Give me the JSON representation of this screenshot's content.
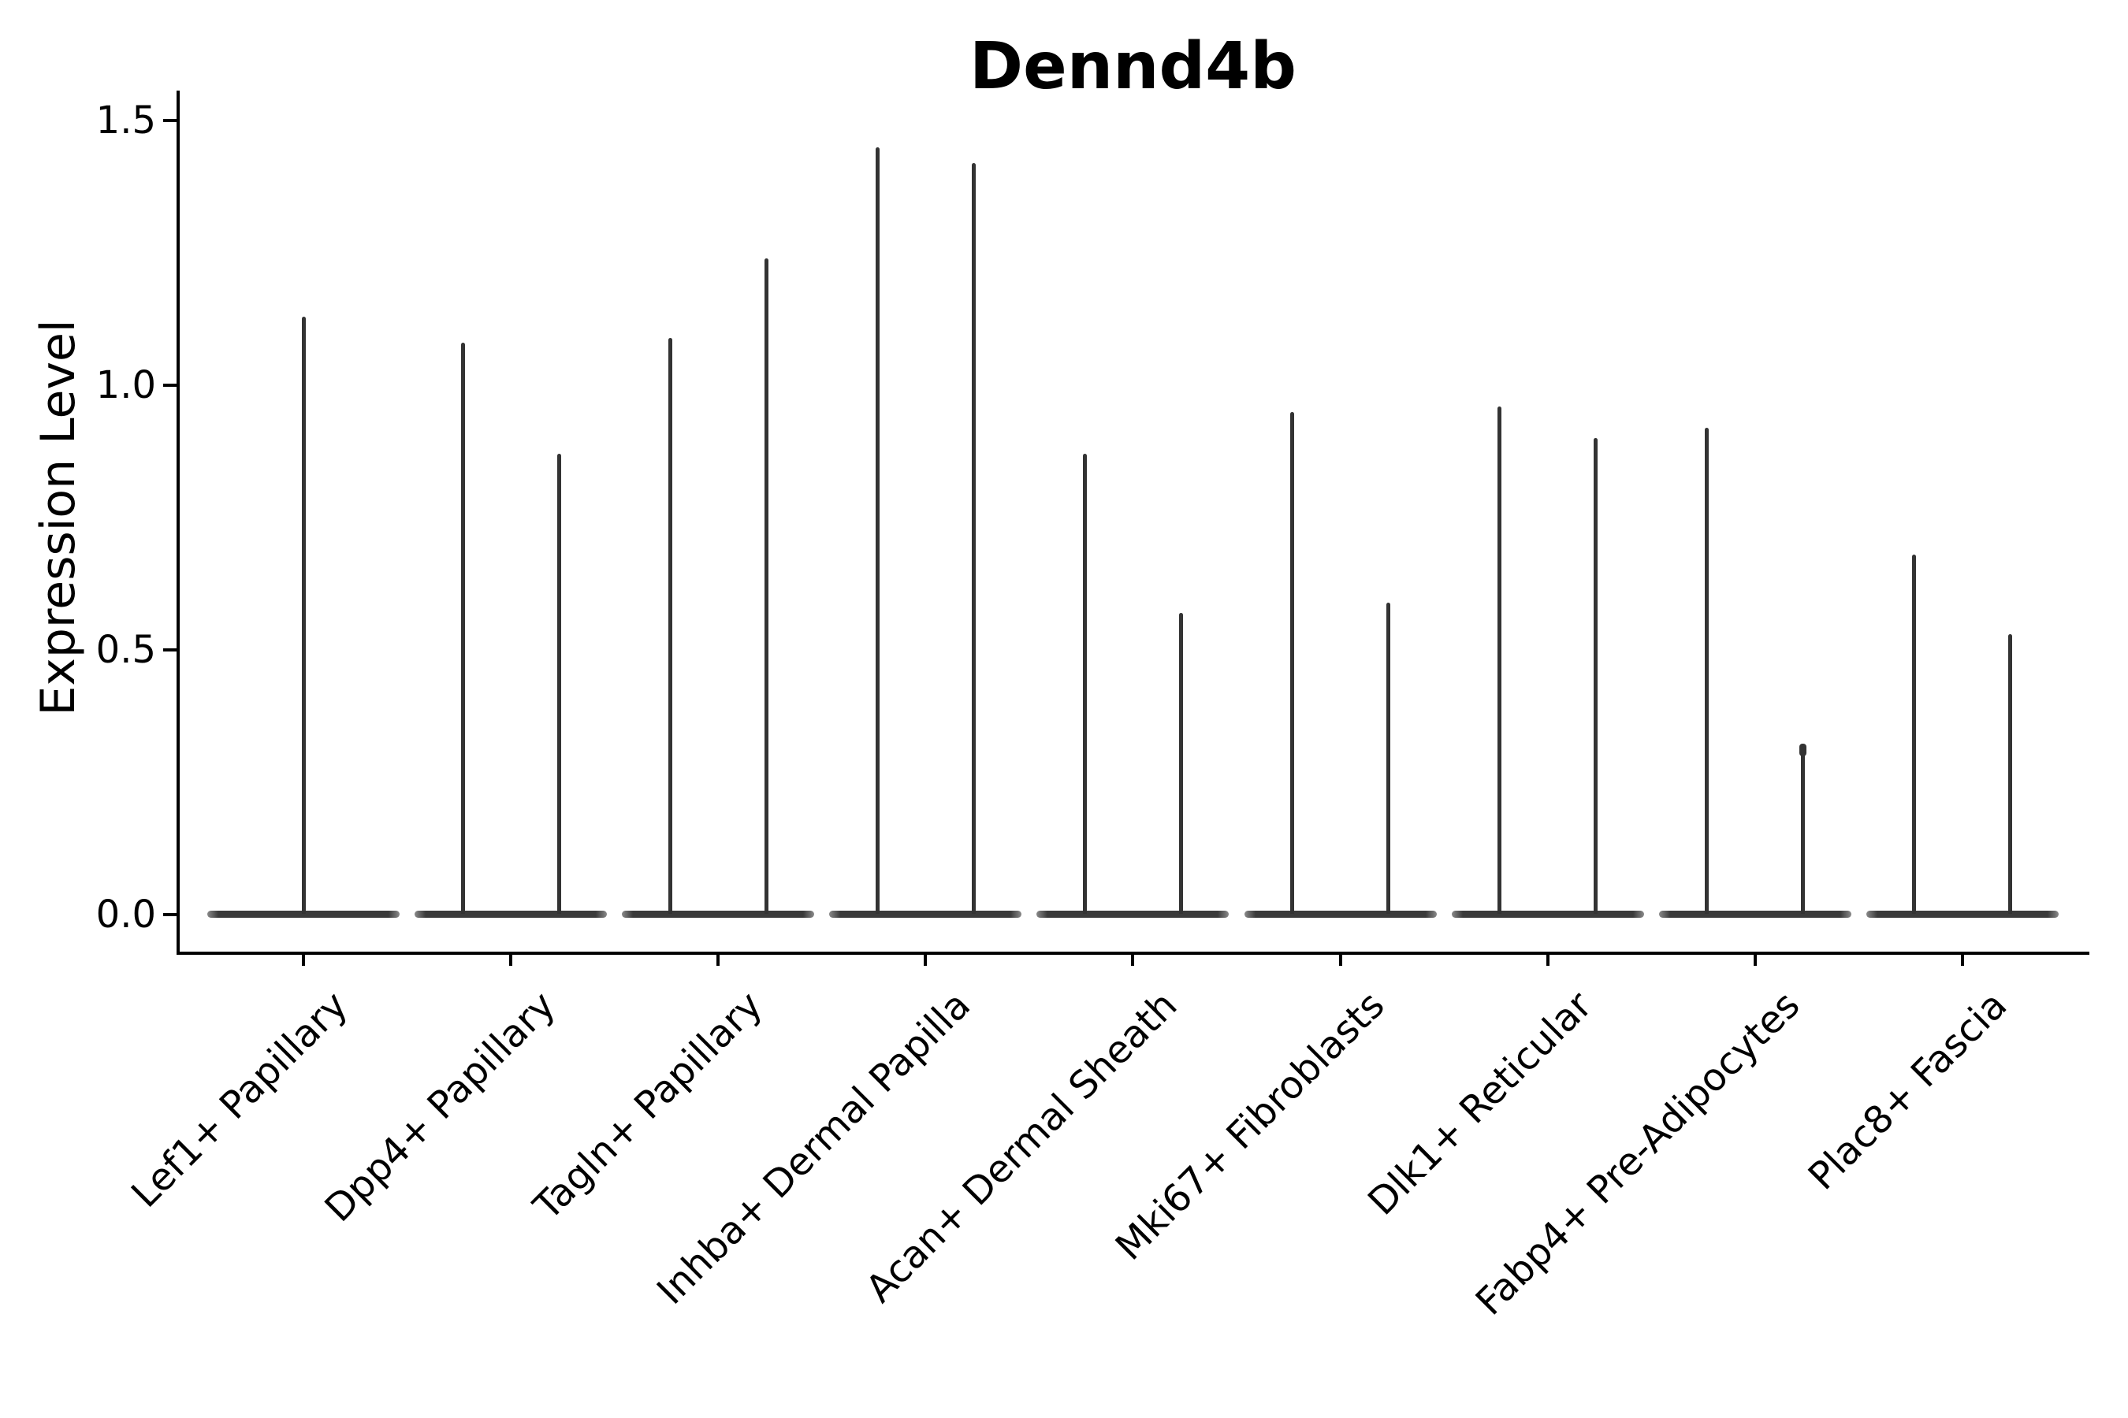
{
  "title": "Dennd4b",
  "y_axis_label": "Expression Level",
  "colors": {
    "violin": "#333333",
    "violin_body": "#3a3a3a",
    "violin_body_tip": "#8a8a8a",
    "axis": "#000000",
    "text": "#000000",
    "background": "#ffffff"
  },
  "chart_data": {
    "type": "violin",
    "title": "Dennd4b",
    "xlabel": "",
    "ylabel": "Expression Level",
    "ylim": [
      0,
      1.5
    ],
    "yticks": [
      "0.0",
      "0.5",
      "1.0",
      "1.5"
    ],
    "ytick_values": [
      0.0,
      0.5,
      1.0,
      1.5
    ],
    "grid": false,
    "legend": "none",
    "description": "Violin plot of Dennd4b expression; most mass flattened at 0 with thin spikes to the maximum expression value. Each category except the first contains two adjacent violins.",
    "categories": [
      "Lef1+ Papillary",
      "Dpp4+ Papillary",
      "Tagln+ Papillary",
      "Inhba+ Dermal Papilla",
      "Acan+ Dermal Sheath",
      "Mki67+ Fibroblasts",
      "Dlk1+ Reticular",
      "Fabp4+ Pre-Adipocytes",
      "Plac8+ Fascia"
    ],
    "violins": [
      {
        "category": "Lef1+ Papillary",
        "spike_maxima": [
          1.13
        ]
      },
      {
        "category": "Dpp4+ Papillary",
        "spike_maxima": [
          1.08,
          0.87
        ]
      },
      {
        "category": "Tagln+ Papillary",
        "spike_maxima": [
          1.09,
          1.24
        ]
      },
      {
        "category": "Inhba+ Dermal Papilla",
        "spike_maxima": [
          1.45,
          1.42
        ]
      },
      {
        "category": "Acan+ Dermal Sheath",
        "spike_maxima": [
          0.87,
          0.57
        ]
      },
      {
        "category": "Mki67+ Fibroblasts",
        "spike_maxima": [
          0.95,
          0.59
        ]
      },
      {
        "category": "Dlk1+ Reticular",
        "spike_maxima": [
          0.96,
          0.9
        ]
      },
      {
        "category": "Fabp4+ Pre-Adipocytes",
        "spike_maxima": [
          0.92,
          0.32
        ],
        "knob_on_spike": 1
      },
      {
        "category": "Plac8+ Fascia",
        "spike_maxima": [
          0.68,
          0.53
        ]
      }
    ]
  }
}
